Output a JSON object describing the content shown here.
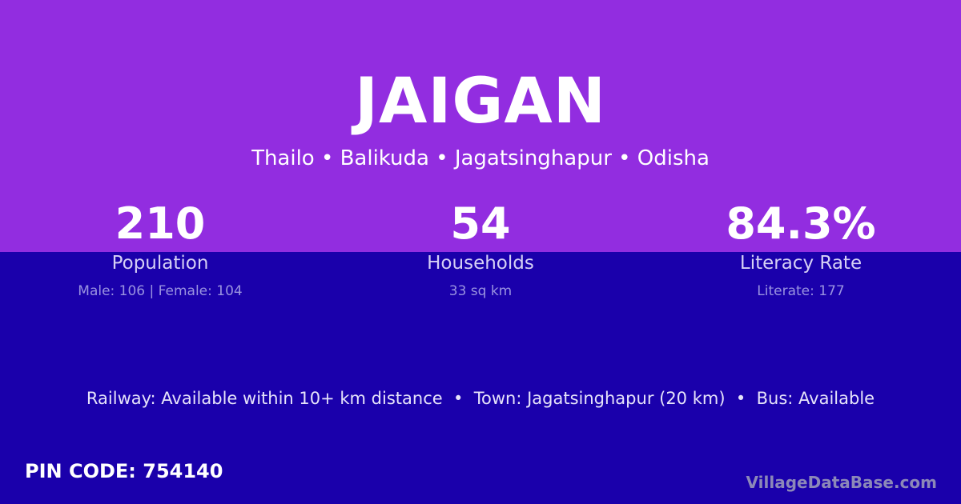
{
  "colors": {
    "top": "#922de0",
    "bottom": "#1a00ab"
  },
  "title": "JAIGAN",
  "subtitle": "Thailo • Balikuda • Jagatsinghapur • Odisha",
  "stats": [
    {
      "value": "210",
      "label": "Population",
      "detail": "Male: 106 | Female: 104"
    },
    {
      "value": "54",
      "label": "Households",
      "detail": "33 sq km"
    },
    {
      "value": "84.3%",
      "label": "Literacy Rate",
      "detail": "Literate: 177"
    }
  ],
  "info": "Railway: Available within 10+ km distance  •  Town: Jagatsinghapur (20 km)  •  Bus: Available",
  "pin": "PIN CODE: 754140",
  "brand": "VillageDataBase.com"
}
